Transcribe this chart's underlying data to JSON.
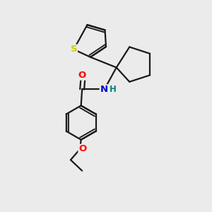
{
  "background_color": "#ebebeb",
  "bond_color": "#1a1a1a",
  "line_width": 1.6,
  "figsize": [
    3.0,
    3.0
  ],
  "dpi": 100,
  "atom_labels": {
    "S": {
      "color": "#cccc00",
      "fontsize": 9.5,
      "fontweight": "bold"
    },
    "O_carbonyl": {
      "color": "#ff0000",
      "fontsize": 9.5,
      "fontweight": "bold"
    },
    "N": {
      "color": "#0000cc",
      "fontsize": 9.5,
      "fontweight": "bold"
    },
    "H": {
      "color": "#008080",
      "fontsize": 8.5,
      "fontweight": "bold"
    },
    "O_ether": {
      "color": "#ff0000",
      "fontsize": 9.5,
      "fontweight": "bold"
    }
  },
  "xlim": [
    0,
    10
  ],
  "ylim": [
    0,
    10
  ]
}
